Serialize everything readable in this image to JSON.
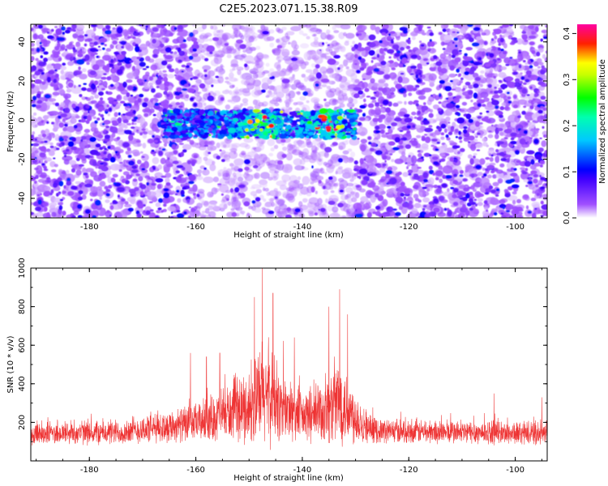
{
  "title": "C2E5.2023.071.15.38.R09",
  "chart_data": [
    {
      "type": "heatmap",
      "title": "C2E5.2023.071.15.38.R09",
      "xlabel": "Height of straight line (km)",
      "ylabel": "Frequency (Hz)",
      "xlim": [
        -191,
        -94
      ],
      "ylim": [
        -50,
        49
      ],
      "x_ticks": [
        -180,
        -160,
        -140,
        -120,
        -100
      ],
      "y_ticks": [
        -40,
        -20,
        0,
        20,
        40
      ],
      "colorbar": {
        "label": "Normalized spectral amplitude",
        "range": [
          0.0,
          0.42
        ],
        "ticks": [
          0.0,
          0.1,
          0.2,
          0.3,
          0.4
        ],
        "colormap": [
          "#ffffff",
          "#8000ff",
          "#0000ff",
          "#00ffff",
          "#00ff00",
          "#ffff00",
          "#ff0000",
          "#ff00a0"
        ]
      },
      "features": [
        {
          "description": "signal band",
          "x_range": [
            -166,
            -130
          ],
          "y_center": -2,
          "y_halfwidth": 7,
          "peak_amplitude": 0.4,
          "peak_x": [
            -148,
            -135
          ]
        },
        {
          "description": "low-amplitude background noise",
          "amplitude_range": [
            0.0,
            0.1
          ]
        },
        {
          "description": "depleted region",
          "x_range": [
            -160,
            -130
          ],
          "amplitude_range": [
            0.0,
            0.05
          ]
        }
      ]
    },
    {
      "type": "line",
      "xlabel": "Height of straight line (km)",
      "ylabel": "SNR (10 * v/v)",
      "xlim": [
        -191,
        -94
      ],
      "ylim": [
        0,
        1000
      ],
      "x_ticks": [
        -180,
        -160,
        -140,
        -120,
        -100
      ],
      "y_ticks": [
        200,
        400,
        600,
        800,
        1000
      ],
      "color": "#ee3333",
      "envelope": [
        {
          "x": -191,
          "base": 130,
          "spread": 110
        },
        {
          "x": -175,
          "base": 130,
          "spread": 110
        },
        {
          "x": -160,
          "base": 170,
          "spread": 160
        },
        {
          "x": -155,
          "base": 200,
          "spread": 230
        },
        {
          "x": -150,
          "base": 230,
          "spread": 320
        },
        {
          "x": -147,
          "base": 280,
          "spread": 480
        },
        {
          "x": -144,
          "base": 230,
          "spread": 330
        },
        {
          "x": -140,
          "base": 190,
          "spread": 220
        },
        {
          "x": -136,
          "base": 210,
          "spread": 300
        },
        {
          "x": -133,
          "base": 250,
          "spread": 400
        },
        {
          "x": -130,
          "base": 190,
          "spread": 240
        },
        {
          "x": -127,
          "base": 140,
          "spread": 110
        },
        {
          "x": -94,
          "base": 125,
          "spread": 100
        }
      ],
      "peaks": [
        {
          "x": -147.5,
          "y": 1000
        },
        {
          "x": -149,
          "y": 850
        },
        {
          "x": -145.5,
          "y": 870
        },
        {
          "x": -133,
          "y": 890
        },
        {
          "x": -135,
          "y": 800
        },
        {
          "x": -131.5,
          "y": 760
        },
        {
          "x": -161,
          "y": 560
        },
        {
          "x": -158,
          "y": 540
        },
        {
          "x": -141.5,
          "y": 640
        },
        {
          "x": -155.5,
          "y": 560
        },
        {
          "x": -95,
          "y": 330
        },
        {
          "x": -104,
          "y": 350
        }
      ]
    }
  ]
}
